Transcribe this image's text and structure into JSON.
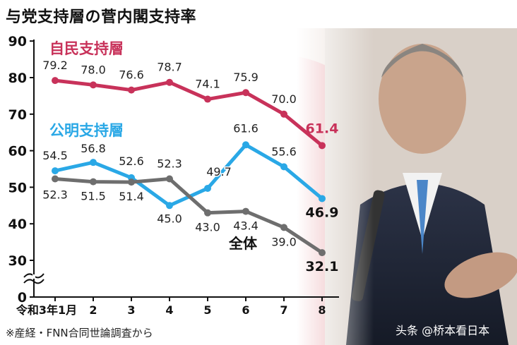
{
  "title": "与党支持層の菅内閣支持率",
  "source": "※産経・FNN合同世論調査から",
  "watermark": "头条 @桥本看日本",
  "colors": {
    "ldp": "#c8325a",
    "komeito": "#2aa8e6",
    "overall": "#6e6e6e"
  },
  "chart_data": {
    "type": "line",
    "categories": [
      "令和3年1月",
      "2",
      "3",
      "4",
      "5",
      "6",
      "7",
      "8"
    ],
    "ylim": [
      0,
      90
    ],
    "yticks": [
      0,
      30,
      40,
      50,
      60,
      70,
      80,
      90
    ],
    "axis_break": true,
    "series": [
      {
        "name": "自民支持層",
        "color": "#c8325a",
        "values": [
          79.2,
          78.0,
          76.6,
          78.7,
          74.1,
          75.9,
          70.0,
          61.4
        ],
        "labels": [
          "79.2",
          "78.0",
          "76.6",
          "78.7",
          "74.1",
          "75.9",
          "70.0",
          "61.4"
        ]
      },
      {
        "name": "公明支持層",
        "color": "#2aa8e6",
        "values": [
          54.5,
          56.8,
          52.6,
          45.0,
          49.7,
          61.6,
          55.6,
          46.9
        ],
        "labels": [
          "54.5",
          "56.8",
          "52.6",
          "45.0",
          "49.7",
          "61.6",
          "55.6",
          "46.9"
        ]
      },
      {
        "name": "全体",
        "color": "#6e6e6e",
        "values": [
          52.3,
          51.5,
          51.4,
          52.3,
          43.0,
          43.4,
          39.0,
          32.1
        ],
        "labels": [
          "52.3",
          "51.5",
          "51.4",
          "52.3",
          "43.0",
          "43.4",
          "39.0",
          "32.1"
        ]
      }
    ]
  }
}
